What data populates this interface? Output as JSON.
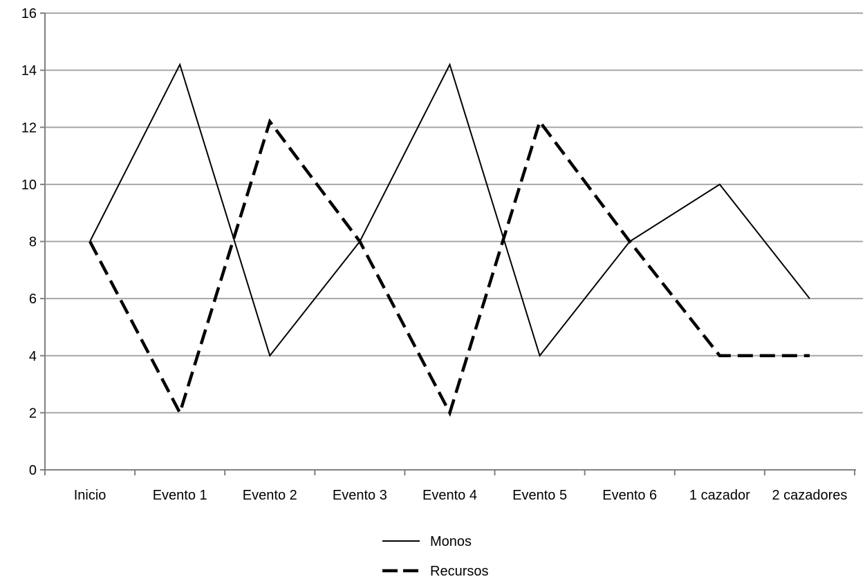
{
  "chart_data": {
    "type": "line",
    "title": "",
    "xlabel": "",
    "ylabel": "",
    "categories": [
      "Inicio",
      "Evento 1",
      "Evento 2",
      "Evento 3",
      "Evento 4",
      "Evento 5",
      "Evento 6",
      "1 cazador",
      "2 cazadores"
    ],
    "ylim": [
      0,
      16
    ],
    "yticks": [
      0,
      2,
      4,
      6,
      8,
      10,
      12,
      14,
      16
    ],
    "grid": true,
    "legend_position": "bottom",
    "series": [
      {
        "name": "Monos",
        "style": "solid",
        "color": "#000000",
        "values": [
          8,
          14.2,
          4,
          8,
          14.2,
          4,
          8,
          10,
          6
        ]
      },
      {
        "name": "Recursos",
        "style": "dashed",
        "color": "#000000",
        "values": [
          8,
          2,
          12.2,
          8,
          2,
          12.2,
          8,
          4,
          4
        ]
      }
    ]
  },
  "colors": {
    "grid": "#a6a6a6",
    "axis": "#808080",
    "series": "#000000"
  }
}
